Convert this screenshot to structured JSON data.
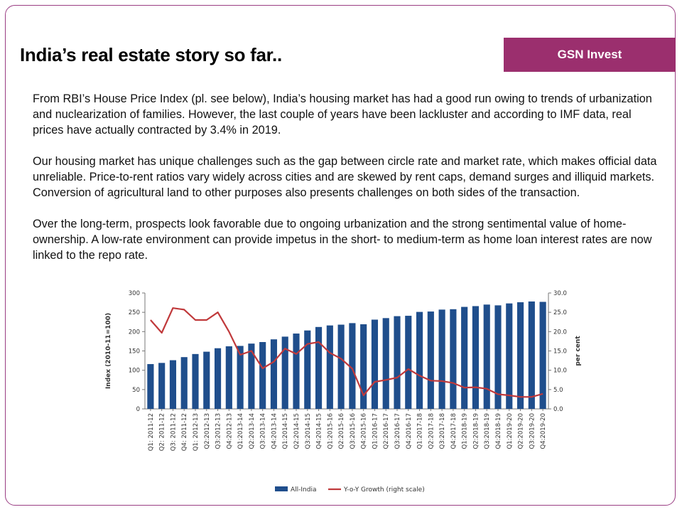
{
  "slide": {
    "title": "India’s real estate story so far..",
    "brand": "GSN Invest",
    "paragraphs": [
      "From RBI’s House Price Index (pl. see below), India’s housing market has had a good run owing to trends of urbanization and nuclearization of families. However, the last couple of years have been lackluster and according to IMF data, real prices have actually contracted by 3.4% in 2019.",
      "Our housing market has unique challenges such as the gap between circle rate and market rate, which makes official data unreliable. Price-to-rent ratios vary widely across cities and are skewed by rent caps, demand surges and illiquid markets. Conversion of agricultural land to other purposes also presents challenges on both sides of the transaction.",
      "Over the long-term, prospects look favorable due to ongoing urbanization and the strong sentimental value of home-ownership. A low-rate environment can provide impetus in the short- to medium-term as home loan interest rates are now linked to the repo rate."
    ],
    "colors": {
      "accent": "#9b2f6e",
      "border": "#9a3d83"
    }
  },
  "chart_data": {
    "type": "bar",
    "categories": [
      "Q1: 2011-12",
      "Q2: 2011-12",
      "Q3: 2011-12",
      "Q4: 2011-12",
      "Q1: 2012-13",
      "Q2:2012-13",
      "Q3:2012-13",
      "Q4:2012-13",
      "Q1:2013-14",
      "Q2:2013-14",
      "Q3:2013-14",
      "Q4:2013-14",
      "Q1:2014-15",
      "Q2:2014-15",
      "Q3:2014-15",
      "Q4:2014-15",
      "Q1:2015-16",
      "Q2:2015-16",
      "Q3:2015-16",
      "Q4:2015-16",
      "Q1:2016-17",
      "Q2:2016-17",
      "Q3:2016-17",
      "Q4:2016-17",
      "Q1:2017-18",
      "Q2:2017-18",
      "Q3:2017-18",
      "Q4:2017-18",
      "Q1:2018-19",
      "Q2:2018-19",
      "Q3:2018-19",
      "Q4:2018-19",
      "Q1:2019-20",
      "Q2:2019-20",
      "Q3:2019-20",
      "Q4:2019-20"
    ],
    "series": [
      {
        "name": "All-India",
        "type": "bar",
        "axis": "left",
        "color": "#1f4e8c",
        "values": [
          116,
          119,
          126,
          134,
          142,
          148,
          157,
          162,
          163,
          169,
          173,
          180,
          187,
          195,
          203,
          212,
          216,
          218,
          222,
          219,
          231,
          235,
          240,
          241,
          251,
          252,
          257,
          258,
          264,
          266,
          270,
          268,
          273,
          276,
          278,
          277
        ]
      },
      {
        "name": "Y-o-Y Growth (right scale)",
        "type": "line",
        "axis": "right",
        "color": "#c0393b",
        "values": [
          23.0,
          19.7,
          26.1,
          25.7,
          23.0,
          23.0,
          25.0,
          20.0,
          14.0,
          15.0,
          10.5,
          12.2,
          15.6,
          14.2,
          16.8,
          17.3,
          14.5,
          13.0,
          10.4,
          3.5,
          7.0,
          7.5,
          8.1,
          10.3,
          8.6,
          7.3,
          7.2,
          6.7,
          5.5,
          5.6,
          5.2,
          3.8,
          3.5,
          3.1,
          3.1,
          3.9
        ]
      }
    ],
    "y_left": {
      "label": "Index (2010-11=100)",
      "ticks": [
        "0",
        "50",
        "100",
        "150",
        "200",
        "250",
        "300"
      ],
      "min": 0,
      "max": 300
    },
    "y_right": {
      "label": "per cent",
      "ticks": [
        "0.0",
        "5.0",
        "10.0",
        "15.0",
        "20.0",
        "25.0",
        "30.0"
      ],
      "min": 0,
      "max": 30
    },
    "grid": false,
    "legend": {
      "position": "bottom",
      "entries": [
        "All-India",
        "Y-o-Y Growth (right scale)"
      ]
    }
  }
}
